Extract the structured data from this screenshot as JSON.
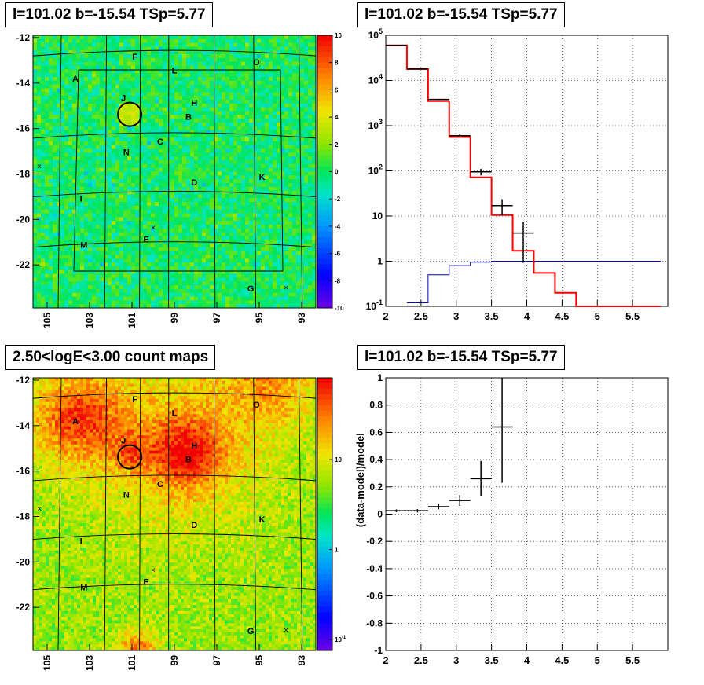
{
  "panels": {
    "tl_title": "l=101.02 b=-15.54 TSp=5.77",
    "tr_title": "l=101.02 b=-15.54 TSp=5.77",
    "bl_title": "2.50<logE<3.00 count maps",
    "br_title": "l=101.02 b=-15.54 TSp=5.77"
  },
  "colors": {
    "data": "#000000",
    "model": "#ff0000",
    "background_model": "#0000cc"
  },
  "chart_data": [
    {
      "type": "heatmap",
      "map": "residual",
      "y_tick_labels": [
        "-12",
        "-14",
        "-16",
        "-18",
        "-20",
        "-22"
      ],
      "x_tick_labels": [
        "105",
        "103",
        "101",
        "99",
        "97",
        "95",
        "93"
      ],
      "colorbar_ticks": [
        "10",
        "8",
        "6",
        "4",
        "2",
        "0",
        "-2",
        "-4",
        "-6",
        "-8",
        "-10"
      ],
      "colorbar_range": [
        -10,
        10
      ],
      "sources": [
        "A",
        "B",
        "C",
        "D",
        "E",
        "F",
        "G",
        "H",
        "I",
        "J",
        "K",
        "L",
        "M",
        "N",
        "O"
      ]
    },
    {
      "type": "line",
      "scale": "log-y",
      "xlim": [
        2,
        6
      ],
      "ylim": [
        0.1,
        100000
      ],
      "x_tick_labels": [
        "2",
        "2.5",
        "3",
        "3.5",
        "4",
        "4.5",
        "5",
        "5.5"
      ],
      "y_tick_labels": [
        "10^5",
        "10^4",
        "10^3",
        "10^2",
        "10",
        "1",
        "10^-1"
      ],
      "x": [
        2.15,
        2.45,
        2.75,
        3.05,
        3.35,
        3.65,
        3.95,
        4.25,
        4.55,
        4.85,
        5.15,
        5.45,
        5.75
      ],
      "series": [
        {
          "values": [
            60000,
            18000,
            3800,
            600,
            95,
            17,
            4.2,
            null,
            null,
            null,
            null,
            null,
            null
          ]
        },
        {
          "values": [
            60000,
            18000,
            3500,
            560,
            72,
            10.5,
            1.7,
            0.55,
            0.2,
            0.1,
            0.1,
            0.1,
            0.1
          ]
        },
        {
          "values": [
            null,
            0.12,
            0.5,
            0.8,
            0.95,
            1.0,
            1.0,
            1.0,
            1.0,
            1.0,
            1.0,
            1.0,
            1.0
          ]
        }
      ],
      "grid": true
    },
    {
      "type": "heatmap",
      "map": "count",
      "y_tick_labels": [
        "-12",
        "-14",
        "-16",
        "-18",
        "-20",
        "-22"
      ],
      "x_tick_labels": [
        "105",
        "103",
        "101",
        "99",
        "97",
        "95",
        "93"
      ],
      "colorbar_ticks": [
        "10",
        "1",
        "10^-1"
      ],
      "colorbar_scale": "log",
      "sources": [
        "A",
        "B",
        "C",
        "D",
        "E",
        "F",
        "G",
        "H",
        "I",
        "J",
        "K",
        "L",
        "M",
        "N",
        "O"
      ]
    },
    {
      "type": "scatter",
      "ylabel": "(data-model)/model",
      "xlim": [
        2,
        6
      ],
      "ylim": [
        -1,
        1
      ],
      "x_tick_labels": [
        "2",
        "2.5",
        "3",
        "3.5",
        "4",
        "4.5",
        "5",
        "5.5"
      ],
      "y_tick_labels": [
        "1",
        "0.8",
        "0.6",
        "0.4",
        "0.2",
        "0",
        "-0.2",
        "-0.4",
        "-0.6",
        "-0.8",
        "-1"
      ],
      "x": [
        2.15,
        2.45,
        2.75,
        3.05,
        3.35,
        3.65
      ],
      "values": [
        0.025,
        0.025,
        0.055,
        0.1,
        0.26,
        0.64
      ],
      "errors": [
        0.01,
        0.012,
        0.02,
        0.04,
        0.13,
        0.41
      ],
      "grid": true
    }
  ]
}
